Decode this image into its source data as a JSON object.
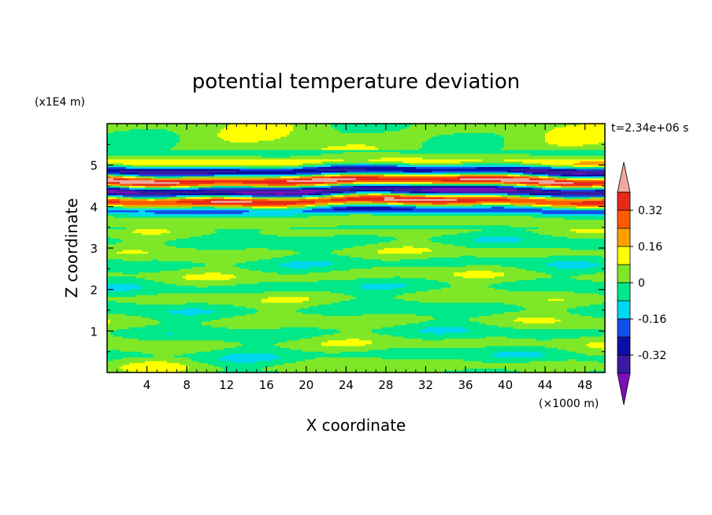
{
  "chart_data": {
    "type": "heatmap",
    "title": "potential temperature deviation",
    "xlabel": "X coordinate",
    "ylabel": "Z coordinate",
    "x_unit": "(×1000 m)",
    "y_unit": "(x1E4 m)",
    "time_label": "t=2.34e+06 s",
    "xlim": [
      0,
      50
    ],
    "ylim": [
      0,
      6
    ],
    "x_ticks": [
      4,
      8,
      12,
      16,
      20,
      24,
      28,
      32,
      36,
      40,
      44,
      48
    ],
    "y_ticks": [
      1,
      2,
      3,
      4,
      5
    ],
    "colorbar": {
      "levels": [
        -0.48,
        -0.4,
        -0.32,
        -0.24,
        -0.16,
        -0.08,
        0,
        0.08,
        0.16,
        0.24,
        0.32,
        0.4
      ],
      "colors": [
        "#7a10b8",
        "#3a1aa0",
        "#0a10a8",
        "#1050e8",
        "#00d8f0",
        "#00e888",
        "#7ee828",
        "#ffff00",
        "#ffa000",
        "#ff5a00",
        "#e82818",
        "#f0a8a0"
      ],
      "tick_labels": [
        "0.32",
        "0.16",
        "0",
        "-0.16",
        "-0.32"
      ],
      "tick_values": [
        0.32,
        0.16,
        0,
        -0.16,
        -0.32
      ],
      "min_extend_color": "#7a10b8",
      "max_extend_color": "#f0a8a0"
    },
    "field_description": [
      {
        "z_range": [
          0,
          3.5
        ],
        "value_range": [
          -0.08,
          0.08
        ]
      },
      {
        "z_range": [
          3.5,
          5.3
        ],
        "value_range": [
          -0.4,
          0.4
        ]
      },
      {
        "z_range": [
          5.3,
          6
        ],
        "value_range": [
          -0.08,
          0.08
        ]
      }
    ]
  }
}
